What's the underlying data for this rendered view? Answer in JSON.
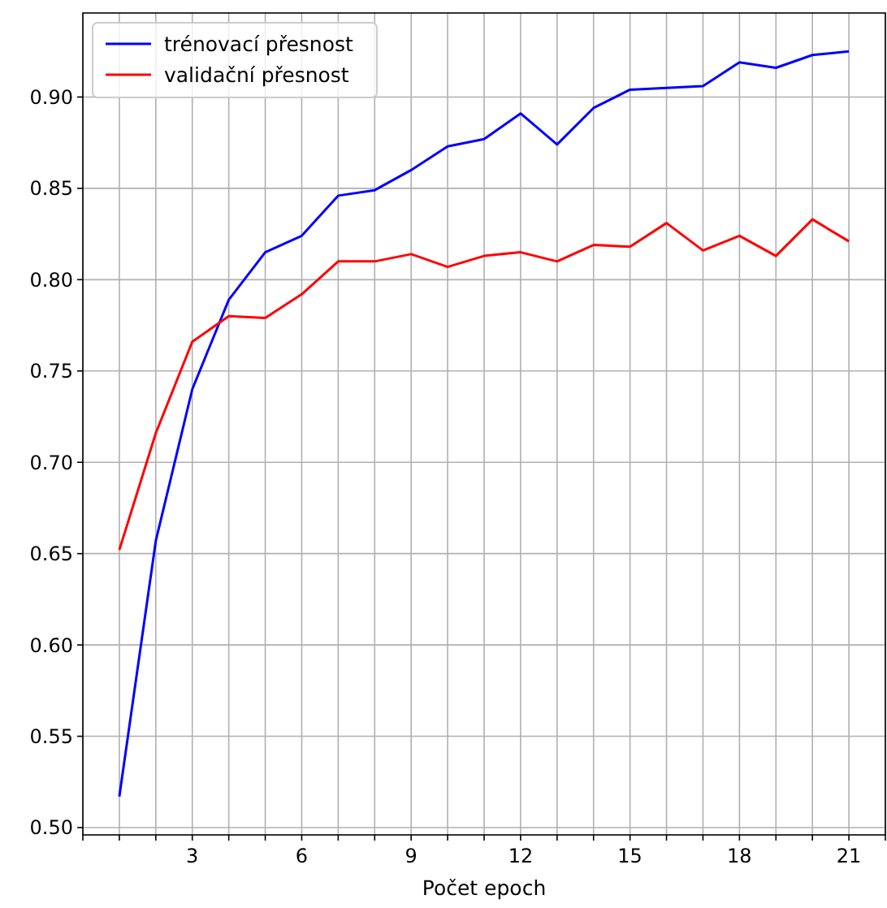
{
  "chart_data": {
    "type": "line",
    "xlabel": "Počet epoch",
    "x": [
      1,
      2,
      3,
      4,
      5,
      6,
      7,
      8,
      9,
      10,
      11,
      12,
      13,
      14,
      15,
      16,
      17,
      18,
      19,
      20,
      21
    ],
    "series": [
      {
        "name": "trénovací přesnost",
        "color": "#0000ff",
        "values": [
          0.517,
          0.657,
          0.74,
          0.789,
          0.815,
          0.824,
          0.846,
          0.849,
          0.86,
          0.873,
          0.877,
          0.891,
          0.874,
          0.894,
          0.904,
          0.905,
          0.906,
          0.919,
          0.916,
          0.923,
          0.925
        ]
      },
      {
        "name": "validační přesnost",
        "color": "#ff0000",
        "values": [
          0.652,
          0.716,
          0.766,
          0.78,
          0.779,
          0.792,
          0.81,
          0.81,
          0.814,
          0.807,
          0.813,
          0.815,
          0.81,
          0.819,
          0.818,
          0.831,
          0.816,
          0.824,
          0.813,
          0.833,
          0.821
        ]
      }
    ],
    "xlim": [
      0,
      22
    ],
    "xticks": [
      {
        "value": 0,
        "label": null
      },
      {
        "value": 1,
        "label": null
      },
      {
        "value": 2,
        "label": null
      },
      3,
      {
        "value": 4,
        "label": null
      },
      {
        "value": 5,
        "label": null
      },
      6,
      {
        "value": 7,
        "label": null
      },
      {
        "value": 8,
        "label": null
      },
      9,
      {
        "value": 10,
        "label": null
      },
      {
        "value": 11,
        "label": null
      },
      12,
      {
        "value": 13,
        "label": null
      },
      {
        "value": 14,
        "label": null
      },
      15,
      {
        "value": 16,
        "label": null
      },
      {
        "value": 17,
        "label": null
      },
      18,
      {
        "value": 19,
        "label": null
      },
      {
        "value": 20,
        "label": null
      },
      21,
      {
        "value": 22,
        "label": null
      }
    ],
    "ylim": [
      0.496,
      0.946
    ],
    "yticks": [
      {
        "value": 0.5,
        "label": "0.50"
      },
      {
        "value": 0.55,
        "label": "0.55"
      },
      {
        "value": 0.6,
        "label": "0.60"
      },
      {
        "value": 0.65,
        "label": "0.65"
      },
      {
        "value": 0.7,
        "label": "0.70"
      },
      {
        "value": 0.75,
        "label": "0.75"
      },
      {
        "value": 0.8,
        "label": "0.80"
      },
      {
        "value": 0.85,
        "label": "0.85"
      },
      {
        "value": 0.9,
        "label": "0.90"
      }
    ],
    "grid": true,
    "legend": "top left",
    "line_style": "solid",
    "marker": "none"
  }
}
